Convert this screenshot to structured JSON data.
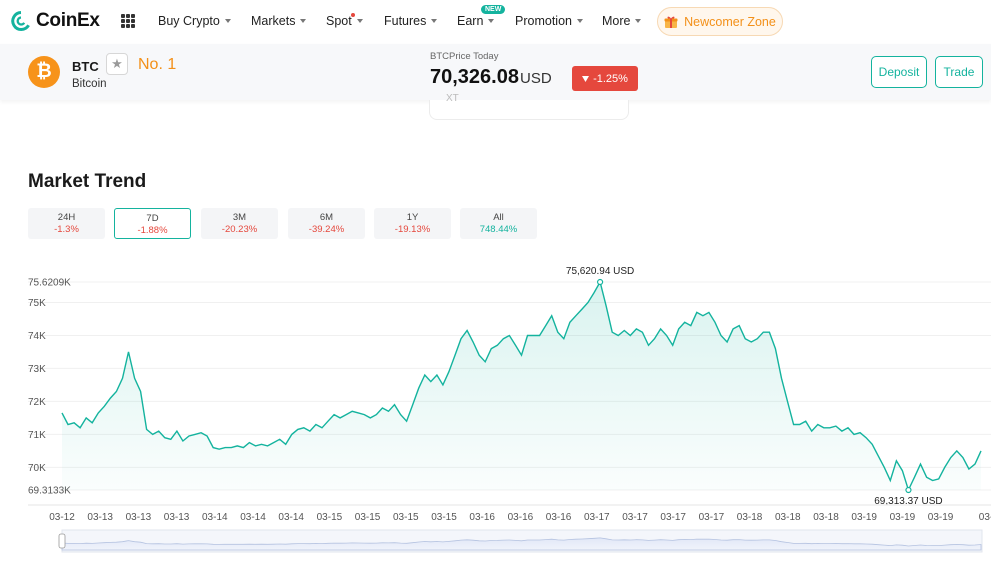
{
  "nav": {
    "logo_text": "CoinEx",
    "items": [
      {
        "label": "Buy Crypto"
      },
      {
        "label": "Markets"
      },
      {
        "label": "Spot"
      },
      {
        "label": "Futures"
      },
      {
        "label": "Earn"
      },
      {
        "label": "Promotion"
      },
      {
        "label": "More"
      }
    ],
    "earn_badge": "NEW",
    "newcomer_label": "Newcomer Zone"
  },
  "coin": {
    "symbol": "BTC",
    "name": "Bitcoin",
    "logo_glyph": "₿",
    "rank": "No. 1",
    "price_label": "BTCPrice Today",
    "price": "70,326.08",
    "price_unit": "USD",
    "change": "-1.25%",
    "deposit_label": "Deposit",
    "trade_label": "Trade",
    "dropdown_fragment": "XT"
  },
  "market_trend": {
    "title": "Market Trend",
    "periods": [
      {
        "label": "24H",
        "change": "-1.3%",
        "direction": "down",
        "active": false
      },
      {
        "label": "7D",
        "change": "-1.88%",
        "direction": "down",
        "active": true
      },
      {
        "label": "3M",
        "change": "-20.23%",
        "direction": "down",
        "active": false
      },
      {
        "label": "6M",
        "change": "-39.24%",
        "direction": "down",
        "active": false
      },
      {
        "label": "1Y",
        "change": "-19.13%",
        "direction": "down",
        "active": false
      },
      {
        "label": "All",
        "change": "748.44%",
        "direction": "up",
        "active": false
      }
    ]
  },
  "colors": {
    "accent": "#14b39e",
    "negative": "#e5483d",
    "rank": "#f39019",
    "btc": "#f7931a"
  },
  "chart_data": {
    "type": "area",
    "ylim": [
      69313.3,
      75620.9
    ],
    "y_ticks": [
      {
        "label": "75.6209K",
        "value": 75620.9
      },
      {
        "label": "75K",
        "value": 75000
      },
      {
        "label": "74K",
        "value": 74000
      },
      {
        "label": "73K",
        "value": 73000
      },
      {
        "label": "72K",
        "value": 72000
      },
      {
        "label": "71K",
        "value": 71000
      },
      {
        "label": "70K",
        "value": 70000
      },
      {
        "label": "69.3133K",
        "value": 69313.3
      }
    ],
    "x_ticks": [
      "03-12",
      "03-13",
      "03-13",
      "03-13",
      "03-14",
      "03-14",
      "03-14",
      "03-15",
      "03-15",
      "03-15",
      "03-15",
      "03-16",
      "03-16",
      "03-16",
      "03-17",
      "03-17",
      "03-17",
      "03-17",
      "03-18",
      "03-18",
      "03-18",
      "03-19",
      "03-19",
      "03-19",
      "03-"
    ],
    "max_annotation": "75,620.94 USD",
    "min_annotation": "69,313.37 USD",
    "max_index": 89,
    "min_index": 140,
    "values": [
      71650,
      71300,
      71350,
      71200,
      71500,
      71350,
      71650,
      71850,
      72100,
      72300,
      72700,
      73500,
      72700,
      72300,
      71150,
      71000,
      71100,
      70900,
      70850,
      71100,
      70800,
      70950,
      71000,
      71050,
      70950,
      70600,
      70550,
      70600,
      70600,
      70650,
      70600,
      70750,
      70650,
      70700,
      70650,
      70750,
      70850,
      70700,
      71000,
      71150,
      71200,
      71100,
      71300,
      71200,
      71400,
      71600,
      71500,
      71600,
      71700,
      71650,
      71600,
      71500,
      71600,
      71800,
      71700,
      71900,
      71600,
      71400,
      71900,
      72400,
      72800,
      72600,
      72800,
      72500,
      72900,
      73400,
      73900,
      74150,
      73800,
      73400,
      73200,
      73600,
      73700,
      73900,
      74000,
      73700,
      73400,
      74000,
      74000,
      74000,
      74300,
      74600,
      74100,
      73900,
      74400,
      74600,
      74800,
      75000,
      75300,
      75620,
      74900,
      74100,
      74000,
      74150,
      74000,
      74200,
      74100,
      73700,
      73900,
      74200,
      74000,
      73700,
      74200,
      74400,
      74300,
      74700,
      74600,
      74700,
      74400,
      74000,
      73800,
      74200,
      74300,
      73900,
      73800,
      73900,
      74100,
      74100,
      73600,
      72700,
      72000,
      71300,
      71300,
      71400,
      71100,
      71300,
      71200,
      71200,
      71250,
      71100,
      71200,
      71000,
      71050,
      70900,
      70700,
      70350,
      70000,
      69600,
      70200,
      69900,
      69313,
      69700,
      70100,
      69700,
      69600,
      69650,
      70000,
      70300,
      70500,
      70300,
      69950,
      70100,
      70500
    ]
  }
}
